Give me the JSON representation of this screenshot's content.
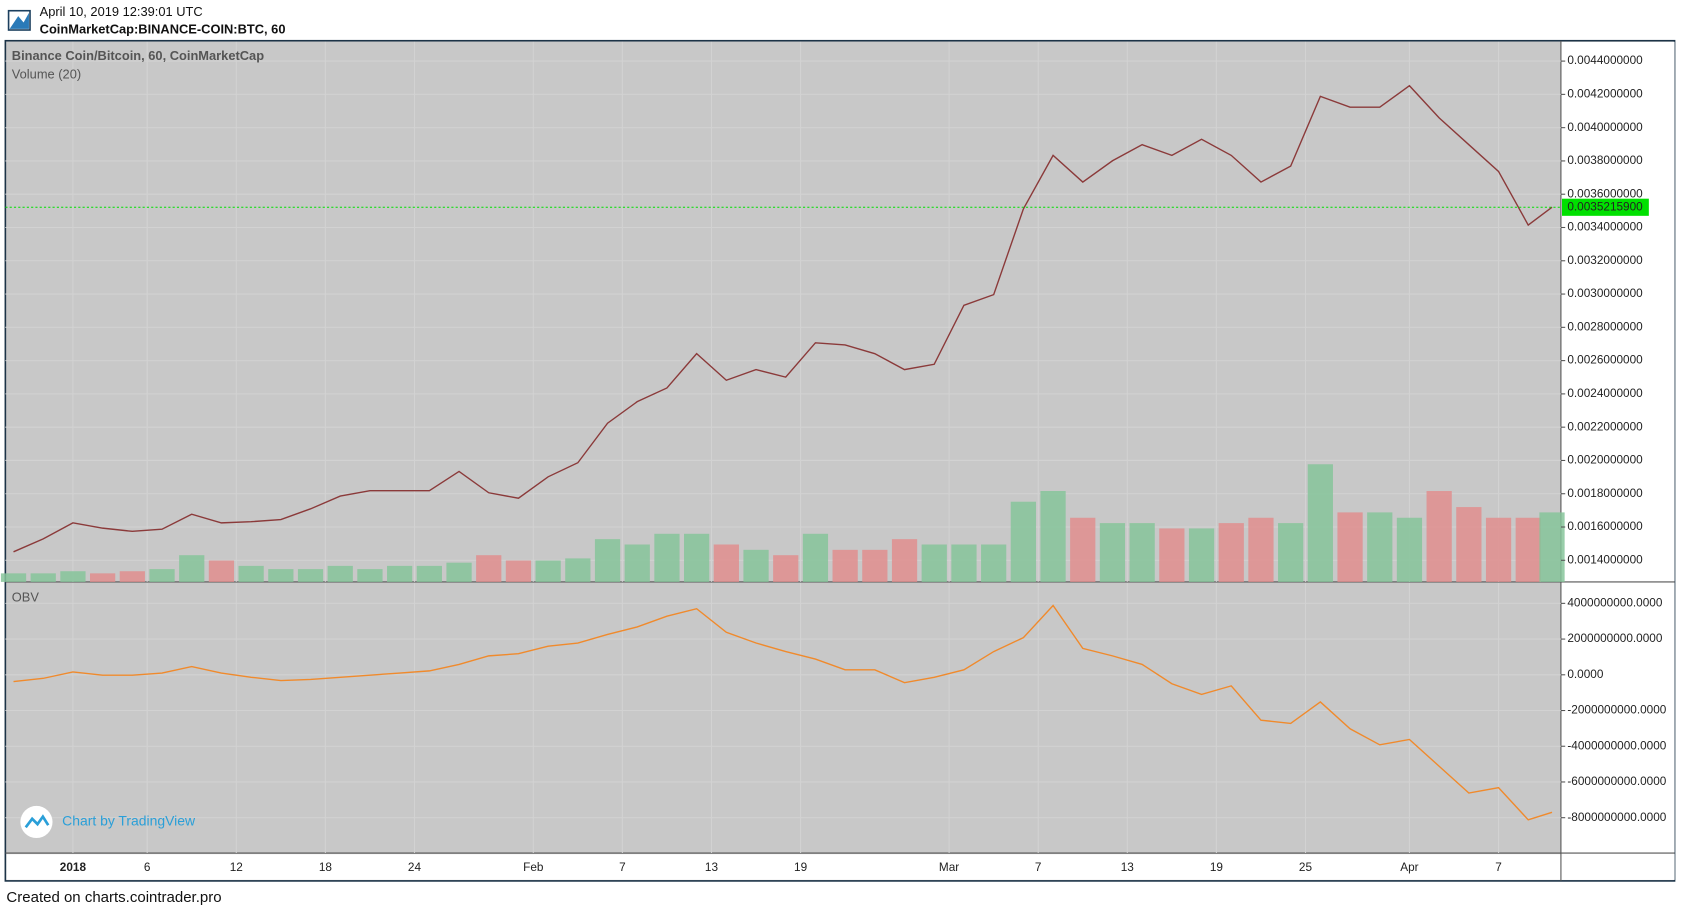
{
  "header": {
    "timestamp": "April 10, 2019 12:39:01 UTC",
    "symbol": "CoinMarketCap:BINANCE-COIN:BTC, 60"
  },
  "footer": "Created on charts.cointrader.pro",
  "watermark": "Chart by TradingView",
  "chart_data": [
    {
      "type": "line",
      "title": "Binance Coin/Bitcoin, 60, CoinMarketCap",
      "color": "#8b3a3a",
      "x": [
        -4,
        -2,
        0,
        2,
        4,
        6,
        8,
        10,
        12,
        14,
        16,
        18,
        20,
        22,
        24,
        26,
        28,
        30,
        32,
        34,
        36,
        38,
        40,
        42,
        44,
        46,
        48,
        50,
        52,
        54,
        56,
        58,
        60,
        62,
        64,
        66,
        68,
        70,
        72,
        74,
        76,
        78,
        80,
        82,
        84,
        86,
        88,
        90,
        92,
        94,
        96,
        98,
        99.6
      ],
      "values": [
        0.001451,
        0.001529,
        0.001625,
        0.001593,
        0.001574,
        0.001587,
        0.001677,
        0.001625,
        0.001632,
        0.001645,
        0.001709,
        0.001786,
        0.001818,
        0.001818,
        0.001818,
        0.001934,
        0.001806,
        0.001773,
        0.001902,
        0.001986,
        0.002224,
        0.002353,
        0.002436,
        0.002642,
        0.002482,
        0.002546,
        0.002501,
        0.002707,
        0.002694,
        0.002642,
        0.002546,
        0.002578,
        0.002932,
        0.002997,
        0.003512,
        0.003833,
        0.003673,
        0.003801,
        0.003898,
        0.003833,
        0.00393,
        0.003833,
        0.003673,
        0.003769,
        0.004188,
        0.004123,
        0.004123,
        0.004252,
        0.004059,
        0.003898,
        0.003737,
        0.003415,
        0.003522
      ],
      "volume": {
        "name": "Volume (20)",
        "up_color": "#86c49a",
        "down_color": "#e08e8e",
        "ylim": [
          0,
          505
        ],
        "values": [
          8,
          8,
          10,
          8,
          10,
          12,
          25,
          20,
          15,
          12,
          12,
          15,
          12,
          15,
          15,
          18,
          25,
          20,
          20,
          22,
          40,
          35,
          45,
          45,
          35,
          30,
          25,
          45,
          30,
          30,
          40,
          35,
          35,
          35,
          75,
          85,
          60,
          55,
          55,
          50,
          50,
          55,
          60,
          55,
          110,
          65,
          65,
          60,
          85,
          70,
          60,
          60,
          65
        ]
      },
      "last_price": {
        "value": 0.00352159,
        "label": "0.0035215900",
        "color": "#00e000"
      },
      "ylim": [
        0.00127,
        0.004516
      ],
      "yticks": [
        {
          "value": 0.0014,
          "label": "0.0014000000"
        },
        {
          "value": 0.0016,
          "label": "0.0016000000"
        },
        {
          "value": 0.0018,
          "label": "0.0018000000"
        },
        {
          "value": 0.002,
          "label": "0.0020000000"
        },
        {
          "value": 0.0022,
          "label": "0.0022000000"
        },
        {
          "value": 0.0024,
          "label": "0.0024000000"
        },
        {
          "value": 0.0026,
          "label": "0.0026000000"
        },
        {
          "value": 0.0028,
          "label": "0.0028000000"
        },
        {
          "value": 0.003,
          "label": "0.0030000000"
        },
        {
          "value": 0.0032,
          "label": "0.0032000000"
        },
        {
          "value": 0.0034,
          "label": "0.0034000000"
        },
        {
          "value": 0.0036,
          "label": "0.0036000000"
        },
        {
          "value": 0.0038,
          "label": "0.0038000000"
        },
        {
          "value": 0.004,
          "label": "0.0040000000"
        },
        {
          "value": 0.0042,
          "label": "0.0042000000"
        },
        {
          "value": 0.0044,
          "label": "0.0044000000"
        }
      ],
      "xlim": [
        -4.55,
        100.2
      ],
      "xticks": [
        {
          "value": 0,
          "label": "2018"
        },
        {
          "value": 5,
          "label": "6"
        },
        {
          "value": 11,
          "label": "12"
        },
        {
          "value": 17,
          "label": "18"
        },
        {
          "value": 23,
          "label": "24"
        },
        {
          "value": 31,
          "label": "Feb"
        },
        {
          "value": 37,
          "label": "7"
        },
        {
          "value": 43,
          "label": "13"
        },
        {
          "value": 49,
          "label": "19"
        },
        {
          "value": 59,
          "label": "Mar"
        },
        {
          "value": 65,
          "label": "7"
        },
        {
          "value": 71,
          "label": "13"
        },
        {
          "value": 77,
          "label": "19"
        },
        {
          "value": 83,
          "label": "25"
        },
        {
          "value": 90,
          "label": "Apr"
        },
        {
          "value": 96,
          "label": "7"
        }
      ],
      "grid": true
    },
    {
      "type": "line",
      "title": "OBV",
      "color": "#f08a2c",
      "x": [
        -4,
        -2,
        0,
        2,
        4,
        6,
        8,
        10,
        12,
        14,
        16,
        18,
        20,
        22,
        24,
        26,
        28,
        30,
        32,
        34,
        36,
        38,
        40,
        42,
        44,
        46,
        48,
        50,
        52,
        54,
        56,
        58,
        60,
        62,
        64,
        66,
        68,
        70,
        72,
        74,
        76,
        78,
        80,
        82,
        84,
        86,
        88,
        90,
        92,
        94,
        96,
        98,
        99.6
      ],
      "values": [
        -380000000,
        -200000000,
        160000000,
        -20000000,
        -20000000,
        100000000,
        460000000,
        100000000,
        -140000000,
        -320000000,
        -260000000,
        -140000000,
        -20000000,
        100000000,
        220000000,
        580000000,
        1060000000,
        1180000000,
        1600000000,
        1780000000,
        2260000000,
        2680000000,
        3280000000,
        3700000000,
        2380000000,
        1780000000,
        1300000000,
        880000000,
        280000000,
        280000000,
        -440000000,
        -140000000,
        280000000,
        1300000000,
        2080000000,
        3880000000,
        1480000000,
        1060000000,
        580000000,
        -500000000,
        -1100000000,
        -620000000,
        -2540000000,
        -2720000000,
        -1520000000,
        -3020000000,
        -3920000000,
        -3620000000,
        -5120000000,
        -6620000000,
        -6320000000,
        -8120000000,
        -7700000000
      ],
      "ylim": [
        -9980000000,
        5140000000
      ],
      "yticks": [
        {
          "value": -8000000000,
          "label": "-8000000000.0000"
        },
        {
          "value": -6000000000,
          "label": "-6000000000.0000"
        },
        {
          "value": -4000000000,
          "label": "-4000000000.0000"
        },
        {
          "value": -2000000000,
          "label": "-2000000000.0000"
        },
        {
          "value": 0,
          "label": "0.0000"
        },
        {
          "value": 2000000000,
          "label": "2000000000.0000"
        },
        {
          "value": 4000000000,
          "label": "4000000000.0000"
        }
      ],
      "grid": true
    }
  ]
}
